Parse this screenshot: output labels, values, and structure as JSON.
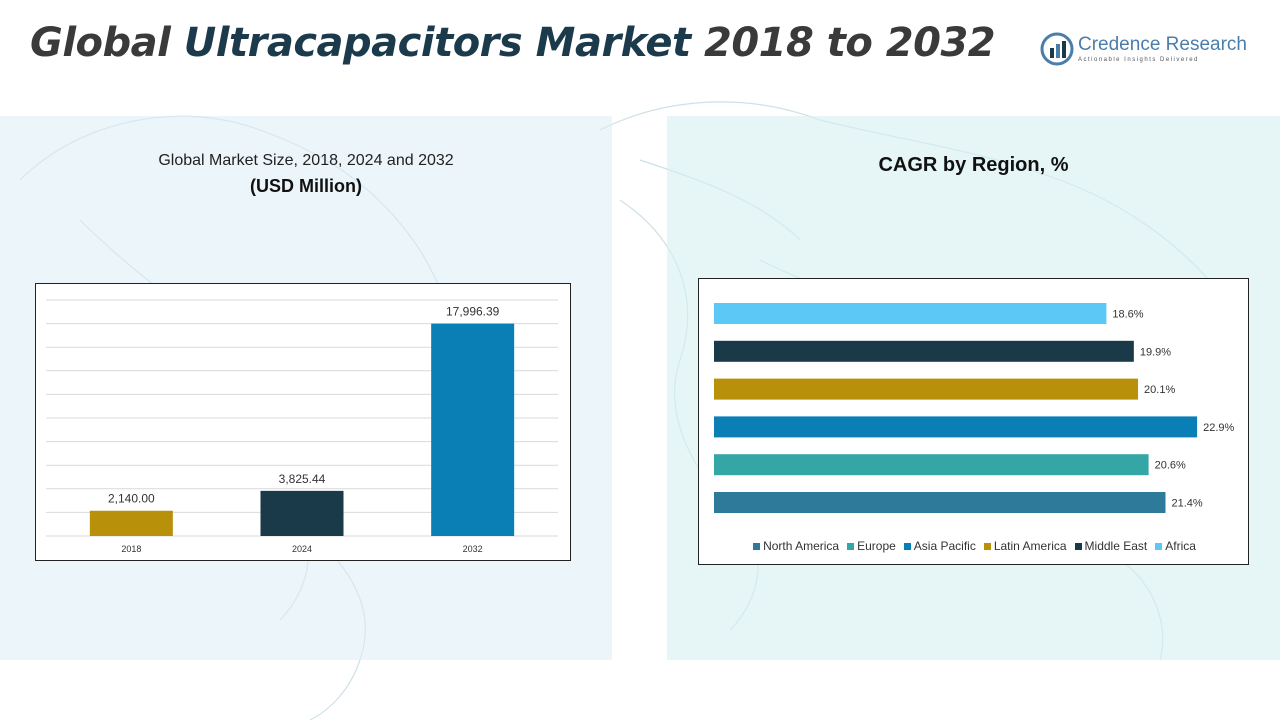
{
  "header": {
    "title_lead": "Global ",
    "title_accent": "Ultracapacitors Market",
    "title_tail": " 2018 to 2032"
  },
  "logo": {
    "name": "Credence Research",
    "tagline": "Actionable Insights Delivered",
    "color": "#4a7dab"
  },
  "left_panel": {
    "title": "Global Market Size, 2018, 2024 and 2032",
    "subtitle": "(USD Million)"
  },
  "right_panel": {
    "title": "CAGR by Region, %"
  },
  "chart_data": [
    {
      "type": "bar",
      "orientation": "vertical",
      "categories": [
        "2018",
        "2024",
        "2032"
      ],
      "values": [
        2140.0,
        3825.44,
        17996.39
      ],
      "value_labels": [
        "2,140.00",
        "3,825.44",
        "17,996.39"
      ],
      "colors": [
        "#b8900a",
        "#1a3a4a",
        "#0a7fb5"
      ],
      "ylim": [
        0,
        20000
      ],
      "grid": true
    },
    {
      "type": "bar",
      "orientation": "horizontal",
      "categories": [
        "North America",
        "Europe",
        "Asia Pacific",
        "Latin America",
        "Middle East",
        "Africa"
      ],
      "values": [
        21.4,
        20.6,
        22.9,
        20.1,
        19.9,
        18.6
      ],
      "value_labels": [
        "21.4%",
        "20.6%",
        "22.9%",
        "20.1%",
        "19.9%",
        "18.6%"
      ],
      "colors": [
        "#2e7a9a",
        "#35a6a6",
        "#0a7fb5",
        "#b8900a",
        "#1a3a4a",
        "#5bc8f5"
      ],
      "xlim": [
        0,
        23.7
      ],
      "legend_position": "bottom",
      "grid": false
    }
  ]
}
